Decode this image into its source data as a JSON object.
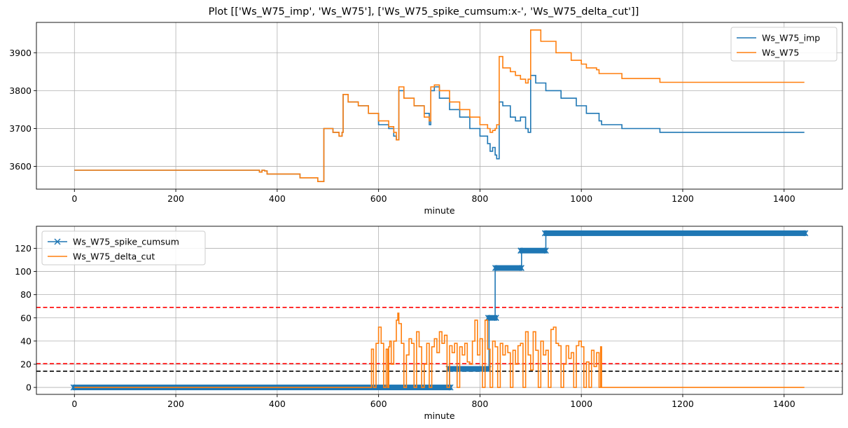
{
  "suptitle": "Plot [['Ws_W75_imp', 'Ws_W75'], ['Ws_W75_spike_cumsum:x-', 'Ws_W75_delta_cut']]",
  "chart_data": [
    {
      "type": "line",
      "xlabel": "minute",
      "ylabel": "",
      "xlim": [
        -75,
        1515
      ],
      "ylim": [
        3540,
        3980
      ],
      "xticks": [
        0,
        200,
        400,
        600,
        800,
        1000,
        1200,
        1400
      ],
      "yticks": [
        3600,
        3700,
        3800,
        3900
      ],
      "grid": true,
      "legend_position": "upper-right",
      "series": [
        {
          "name": "Ws_W75_imp",
          "color": "#1f77b4",
          "x": [
            0,
            360,
            365,
            370,
            375,
            380,
            440,
            445,
            480,
            490,
            492,
            505,
            510,
            520,
            522,
            528,
            530,
            540,
            560,
            580,
            600,
            620,
            630,
            635,
            640,
            650,
            670,
            690,
            700,
            703,
            710,
            720,
            740,
            760,
            780,
            800,
            815,
            820,
            825,
            830,
            833,
            838,
            845,
            860,
            870,
            880,
            890,
            895,
            900,
            910,
            930,
            960,
            990,
            1010,
            1035,
            1040,
            1075,
            1080,
            1150,
            1155,
            1440
          ],
          "y": [
            3590,
            3590,
            3585,
            3590,
            3588,
            3580,
            3580,
            3570,
            3560,
            3560,
            3700,
            3700,
            3690,
            3690,
            3680,
            3690,
            3790,
            3770,
            3760,
            3740,
            3710,
            3700,
            3680,
            3670,
            3800,
            3780,
            3760,
            3740,
            3710,
            3800,
            3810,
            3780,
            3750,
            3730,
            3700,
            3680,
            3660,
            3640,
            3650,
            3630,
            3620,
            3770,
            3760,
            3730,
            3720,
            3730,
            3700,
            3690,
            3840,
            3820,
            3800,
            3780,
            3760,
            3740,
            3720,
            3710,
            3710,
            3700,
            3700,
            3690,
            3690
          ]
        },
        {
          "name": "Ws_W75",
          "color": "#ff7f0e",
          "x": [
            0,
            360,
            365,
            370,
            375,
            380,
            440,
            445,
            480,
            490,
            492,
            505,
            510,
            520,
            522,
            528,
            530,
            540,
            560,
            580,
            600,
            620,
            630,
            635,
            640,
            650,
            670,
            690,
            700,
            703,
            710,
            720,
            740,
            760,
            780,
            800,
            815,
            820,
            825,
            830,
            833,
            838,
            845,
            860,
            870,
            880,
            890,
            895,
            900,
            920,
            950,
            980,
            1000,
            1010,
            1030,
            1035,
            1075,
            1080,
            1150,
            1155,
            1440
          ],
          "y": [
            3590,
            3590,
            3585,
            3590,
            3588,
            3580,
            3580,
            3570,
            3560,
            3560,
            3700,
            3700,
            3690,
            3690,
            3680,
            3690,
            3790,
            3770,
            3760,
            3740,
            3720,
            3705,
            3690,
            3670,
            3810,
            3780,
            3760,
            3730,
            3720,
            3810,
            3815,
            3800,
            3770,
            3750,
            3730,
            3710,
            3700,
            3690,
            3695,
            3700,
            3710,
            3890,
            3860,
            3850,
            3840,
            3830,
            3820,
            3830,
            3960,
            3930,
            3900,
            3880,
            3870,
            3860,
            3855,
            3845,
            3845,
            3832,
            3832,
            3822,
            3822
          ]
        }
      ]
    },
    {
      "type": "line",
      "xlabel": "minute",
      "ylabel": "",
      "xlim": [
        -75,
        1515
      ],
      "ylim": [
        -6,
        139
      ],
      "xticks": [
        0,
        200,
        400,
        600,
        800,
        1000,
        1200,
        1400
      ],
      "yticks": [
        0,
        20,
        40,
        60,
        80,
        100,
        120
      ],
      "grid": true,
      "legend_position": "upper-left",
      "hlines": [
        {
          "y": 69,
          "color": "#ff0000",
          "style": "dashed"
        },
        {
          "y": 20.5,
          "color": "#ff0000",
          "style": "dashed"
        },
        {
          "y": 14,
          "color": "#000000",
          "style": "dashed"
        }
      ],
      "series": [
        {
          "name": "Ws_W75_spike_cumsum",
          "color": "#1f77b4",
          "marker": "x",
          "x": [
            0,
            738,
            740,
            741,
            815,
            818,
            828,
            830,
            832,
            880,
            882,
            928,
            930,
            1440
          ],
          "y": [
            0,
            0,
            16,
            16,
            16,
            60,
            60,
            103,
            103,
            103,
            118,
            118,
            133,
            133
          ],
          "marker_spans": [
            {
              "x0": 0,
              "x1": 740,
              "y": 0
            },
            {
              "x0": 740,
              "x1": 815,
              "y": 16
            },
            {
              "x0": 818,
              "x1": 830,
              "y": 60
            },
            {
              "x0": 832,
              "x1": 880,
              "y": 103
            },
            {
              "x0": 882,
              "x1": 928,
              "y": 118
            },
            {
              "x0": 930,
              "x1": 1440,
              "y": 133
            }
          ]
        },
        {
          "name": "Ws_W75_delta_cut",
          "color": "#ff7f0e",
          "x": [
            0,
            585,
            586,
            590,
            595,
            600,
            605,
            610,
            615,
            618,
            620,
            622,
            625,
            630,
            635,
            638,
            640,
            645,
            650,
            655,
            660,
            665,
            670,
            675,
            680,
            685,
            690,
            695,
            700,
            705,
            710,
            715,
            720,
            725,
            730,
            735,
            740,
            745,
            750,
            755,
            760,
            765,
            770,
            775,
            780,
            785,
            790,
            795,
            800,
            805,
            810,
            815,
            820,
            825,
            830,
            835,
            840,
            845,
            850,
            855,
            860,
            865,
            870,
            875,
            880,
            885,
            890,
            895,
            900,
            905,
            910,
            915,
            920,
            925,
            930,
            935,
            940,
            945,
            950,
            955,
            960,
            965,
            970,
            975,
            980,
            985,
            990,
            995,
            1000,
            1005,
            1010,
            1015,
            1020,
            1025,
            1030,
            1035,
            1038,
            1040,
            1440
          ],
          "y": [
            0,
            0,
            33,
            0,
            38,
            52,
            38,
            0,
            33,
            0,
            35,
            40,
            20,
            40,
            58,
            64,
            55,
            38,
            0,
            28,
            42,
            38,
            0,
            48,
            35,
            0,
            20,
            38,
            0,
            35,
            42,
            30,
            48,
            38,
            45,
            0,
            36,
            30,
            38,
            0,
            35,
            28,
            38,
            22,
            20,
            40,
            58,
            28,
            42,
            0,
            58,
            33,
            0,
            40,
            35,
            0,
            38,
            28,
            36,
            30,
            0,
            32,
            20,
            36,
            38,
            0,
            48,
            28,
            15,
            48,
            32,
            0,
            40,
            28,
            32,
            0,
            50,
            52,
            38,
            36,
            0,
            20,
            36,
            25,
            30,
            0,
            36,
            40,
            35,
            0,
            22,
            0,
            32,
            18,
            30,
            0,
            35,
            0,
            0
          ]
        }
      ]
    }
  ]
}
